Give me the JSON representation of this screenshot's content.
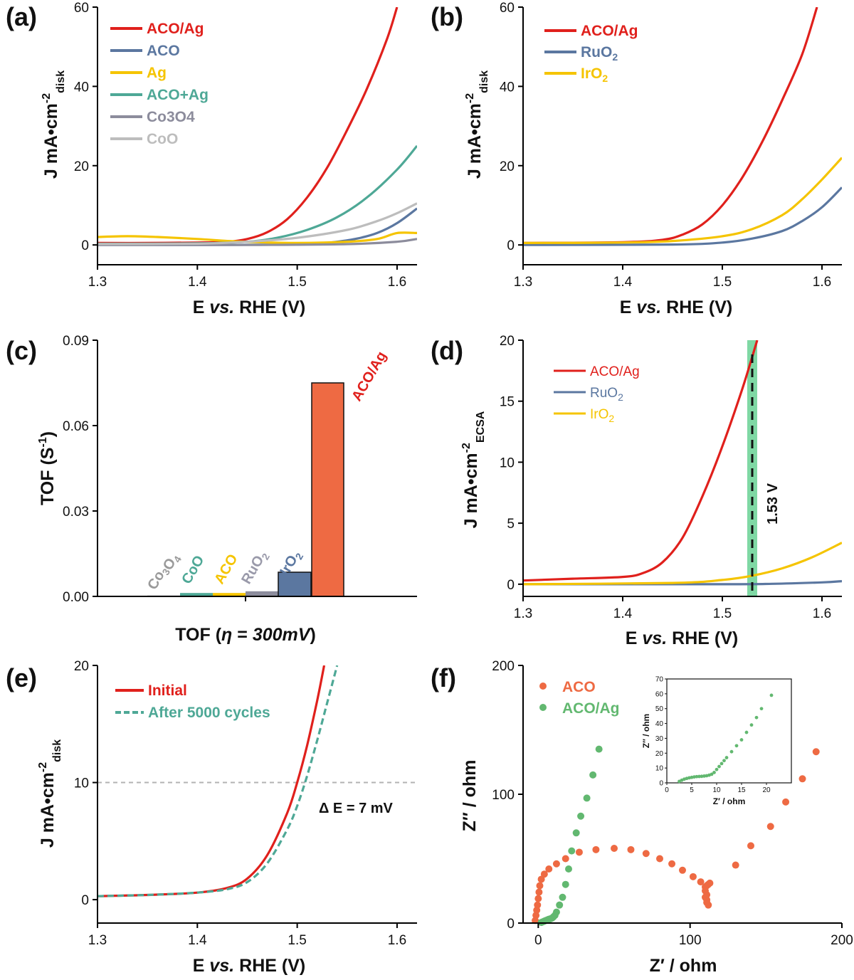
{
  "panels": {
    "a": {
      "label": "(a)"
    },
    "b": {
      "label": "(b)"
    },
    "c": {
      "label": "(c)"
    },
    "d": {
      "label": "(d)"
    },
    "e": {
      "label": "(e)"
    },
    "f": {
      "label": "(f)"
    }
  },
  "colors": {
    "red": "#e0201c",
    "slate": "#5b77a0",
    "yellow": "#f5c400",
    "teal": "#4ea896",
    "gray": "#8c8c9c",
    "lightgray": "#bdbdbd",
    "orange": "#ee6a43",
    "green": "#62b870",
    "band": "#7fd8a4"
  },
  "chart_data": [
    {
      "id": "a",
      "type": "line",
      "xlabel": "E vs. RHE (V)",
      "ylabel": "J mA•cm⁻² disk",
      "xlim": [
        1.3,
        1.62
      ],
      "ylim": [
        -5,
        60
      ],
      "xticks": [
        1.3,
        1.4,
        1.5,
        1.6
      ],
      "yticks": [
        0,
        20,
        40,
        60
      ],
      "legend_position": "top-left",
      "series": [
        {
          "name": "ACO/Ag",
          "color": "#e0201c",
          "x": [
            1.3,
            1.35,
            1.4,
            1.43,
            1.45,
            1.47,
            1.49,
            1.51,
            1.53,
            1.55,
            1.57,
            1.59,
            1.6
          ],
          "y": [
            0.5,
            0.5,
            0.6,
            0.8,
            1.5,
            3.2,
            6.5,
            12,
            19.5,
            29,
            39.5,
            52,
            60
          ]
        },
        {
          "name": "ACO",
          "color": "#5b77a0",
          "x": [
            1.3,
            1.4,
            1.5,
            1.52,
            1.54,
            1.56,
            1.58,
            1.6,
            1.62
          ],
          "y": [
            0,
            0,
            0.1,
            0.3,
            0.8,
            1.6,
            3,
            5.5,
            9.2
          ]
        },
        {
          "name": "Ag",
          "color": "#f5c400",
          "x": [
            1.3,
            1.33,
            1.36,
            1.4,
            1.43,
            1.46,
            1.5,
            1.55,
            1.58,
            1.6,
            1.62
          ],
          "y": [
            2,
            2.2,
            2,
            1.5,
            1,
            0.7,
            0.5,
            0.8,
            1.5,
            3,
            3
          ]
        },
        {
          "name": "ACO+Ag",
          "color": "#4ea896",
          "x": [
            1.3,
            1.4,
            1.45,
            1.48,
            1.51,
            1.54,
            1.57,
            1.6,
            1.62
          ],
          "y": [
            0.3,
            0.4,
            0.8,
            1.8,
            3.8,
            7,
            12,
            19,
            25
          ]
        },
        {
          "name": "Co3O4",
          "color": "#8c8c9c",
          "x": [
            1.3,
            1.45,
            1.55,
            1.6,
            1.62
          ],
          "y": [
            0,
            0,
            0.2,
            0.8,
            1.5
          ]
        },
        {
          "name": "CoO",
          "color": "#bdbdbd",
          "x": [
            1.3,
            1.4,
            1.45,
            1.5,
            1.55,
            1.58,
            1.6,
            1.62
          ],
          "y": [
            0.2,
            0.3,
            0.8,
            1.8,
            3.8,
            6,
            8,
            10.5
          ]
        }
      ]
    },
    {
      "id": "b",
      "type": "line",
      "xlabel": "E vs. RHE (V)",
      "ylabel": "J mA•cm⁻² disk",
      "xlim": [
        1.3,
        1.62
      ],
      "ylim": [
        -5,
        60
      ],
      "xticks": [
        1.3,
        1.4,
        1.5,
        1.6
      ],
      "yticks": [
        0,
        20,
        40,
        60
      ],
      "legend_position": "top-left",
      "series": [
        {
          "name": "ACO/Ag",
          "color": "#e0201c",
          "x": [
            1.3,
            1.4,
            1.44,
            1.46,
            1.48,
            1.5,
            1.52,
            1.54,
            1.56,
            1.58,
            1.595
          ],
          "y": [
            0.5,
            0.7,
            1.3,
            2.6,
            5.2,
            10,
            17,
            26,
            36.5,
            48,
            60
          ]
        },
        {
          "name": "RuO2",
          "color": "#5b77a0",
          "x": [
            1.3,
            1.45,
            1.5,
            1.53,
            1.56,
            1.58,
            1.6,
            1.62
          ],
          "y": [
            0,
            0.1,
            0.6,
            1.6,
            3.5,
            6,
            9.5,
            14.5
          ]
        },
        {
          "name": "IrO2",
          "color": "#f5c400",
          "x": [
            1.3,
            1.4,
            1.45,
            1.5,
            1.53,
            1.56,
            1.58,
            1.6,
            1.62
          ],
          "y": [
            0.5,
            0.6,
            1,
            2.2,
            4,
            7.5,
            11.5,
            16.5,
            22
          ]
        }
      ]
    },
    {
      "id": "c",
      "type": "bar",
      "xlabel": "TOF (η = 300mV)",
      "ylabel": "TOF (S⁻¹)",
      "ylim": [
        0,
        0.09
      ],
      "yticks": [
        0.0,
        0.03,
        0.06,
        0.09
      ],
      "categories": [
        "Co3O4",
        "CoO",
        "ACO",
        "RuO2",
        "IrO2",
        "ACO/Ag"
      ],
      "values": [
        0.0003,
        0.0012,
        0.0012,
        0.0018,
        0.0085,
        0.075
      ],
      "colors": [
        "#8c8c9c",
        "#4ea896",
        "#f5c400",
        "#8c8c9c",
        "#5b77a0",
        "#ee6a43"
      ]
    },
    {
      "id": "d",
      "type": "line",
      "xlabel": "E vs. RHE (V)",
      "ylabel": "J mA•cm⁻² ECSA",
      "xlim": [
        1.3,
        1.62
      ],
      "ylim": [
        -1,
        20
      ],
      "xticks": [
        1.3,
        1.4,
        1.5,
        1.6
      ],
      "yticks": [
        0,
        5,
        10,
        15,
        20
      ],
      "legend_position": "top-left",
      "annotation": "1.53 V",
      "marker_x": 1.53,
      "band": [
        1.525,
        1.535
      ],
      "series": [
        {
          "name": "ACO/Ag",
          "color": "#e0201c",
          "x": [
            1.3,
            1.35,
            1.4,
            1.42,
            1.44,
            1.46,
            1.48,
            1.5,
            1.52,
            1.535
          ],
          "y": [
            0.3,
            0.45,
            0.6,
            0.9,
            1.8,
            3.8,
            7.2,
            11.3,
            16,
            20
          ]
        },
        {
          "name": "RuO2",
          "color": "#5b77a0",
          "x": [
            1.3,
            1.5,
            1.55,
            1.6,
            1.62
          ],
          "y": [
            0,
            0,
            0.03,
            0.15,
            0.25
          ]
        },
        {
          "name": "IrO2",
          "color": "#f5c400",
          "x": [
            1.3,
            1.45,
            1.5,
            1.53,
            1.56,
            1.59,
            1.62
          ],
          "y": [
            0,
            0.1,
            0.35,
            0.7,
            1.3,
            2.2,
            3.4
          ]
        }
      ]
    },
    {
      "id": "e",
      "type": "line",
      "xlabel": "E vs. RHE (V)",
      "ylabel": "J mA•cm⁻² disk",
      "xlim": [
        1.3,
        1.62
      ],
      "ylim": [
        -2,
        20
      ],
      "xticks": [
        1.3,
        1.4,
        1.5,
        1.6
      ],
      "yticks": [
        0,
        10,
        20
      ],
      "legend_position": "top-left",
      "annotation": "Δ E = 7 mV",
      "hline": 10,
      "series": [
        {
          "name": "Initial",
          "color": "#e0201c",
          "style": "solid",
          "x": [
            1.3,
            1.35,
            1.4,
            1.43,
            1.45,
            1.47,
            1.49,
            1.5,
            1.51,
            1.52,
            1.527
          ],
          "y": [
            0.3,
            0.4,
            0.6,
            1,
            1.8,
            3.8,
            7.4,
            10,
            13.2,
            17,
            20
          ]
        },
        {
          "name": "After 5000 cycles",
          "color": "#4ea896",
          "style": "dashed",
          "x": [
            1.3,
            1.35,
            1.4,
            1.43,
            1.45,
            1.47,
            1.49,
            1.5,
            1.51,
            1.52,
            1.53,
            1.54
          ],
          "y": [
            0.3,
            0.4,
            0.6,
            0.9,
            1.5,
            3.1,
            6,
            8,
            10.6,
            13.6,
            16.8,
            20
          ]
        }
      ]
    },
    {
      "id": "f",
      "type": "scatter",
      "xlabel": "Z′ / ohm",
      "ylabel": "Z″ / ohm",
      "xlim": [
        -10,
        200
      ],
      "ylim": [
        0,
        200
      ],
      "xticks": [
        0,
        100,
        200
      ],
      "yticks": [
        0,
        100,
        200
      ],
      "legend_position": "top-left",
      "series": [
        {
          "name": "ACO",
          "color": "#ee6a43",
          "x": [
            -2,
            -1.5,
            -1,
            -0.5,
            0,
            0.5,
            1,
            2,
            4,
            7,
            12,
            18,
            27,
            38,
            50,
            61,
            71,
            80,
            88,
            95,
            102,
            107,
            110,
            111,
            111,
            112,
            111,
            110,
            110,
            111,
            112,
            113,
            130,
            140,
            153,
            163,
            174,
            183
          ],
          "y": [
            2,
            6,
            10,
            14,
            19,
            24,
            29,
            34,
            38,
            42,
            46,
            50,
            55,
            57,
            58,
            57,
            54,
            50,
            46,
            41,
            36,
            32,
            28,
            22,
            18,
            14,
            16,
            20,
            25,
            29,
            30,
            31,
            45,
            60,
            75,
            94,
            112,
            133
          ]
        },
        {
          "name": "ACO/Ag",
          "color": "#62b870",
          "x": [
            2,
            3,
            4,
            5,
            6,
            7,
            8,
            9,
            10,
            11,
            12,
            14,
            16,
            18,
            20,
            22,
            25,
            28,
            32,
            36,
            40
          ],
          "y": [
            0.5,
            1,
            1.5,
            2,
            2.5,
            3,
            3.3,
            3.8,
            4.8,
            6,
            8.5,
            14,
            20,
            30,
            42,
            56,
            70,
            83,
            97,
            115,
            135
          ]
        }
      ],
      "inset": {
        "xlabel": "Z′ / ohm",
        "ylabel": "Z″ / ohm",
        "xlim": [
          0,
          25
        ],
        "ylim": [
          0,
          70
        ],
        "xticks": [
          0,
          5,
          10,
          15,
          20
        ],
        "yticks": [
          0,
          10,
          20,
          30,
          40,
          50,
          60,
          70
        ],
        "x": [
          2.5,
          3,
          3.5,
          4,
          4.5,
          5,
          5.5,
          6,
          6.5,
          7,
          7.5,
          8,
          8.5,
          9,
          9.5,
          10,
          10.5,
          11,
          11.5,
          12,
          13,
          14,
          15,
          16,
          17,
          18,
          19,
          21
        ],
        "y": [
          1,
          1.8,
          2.5,
          3,
          3.4,
          3.7,
          4,
          4.2,
          4.3,
          4.4,
          4.6,
          4.8,
          5.2,
          5.8,
          7,
          9,
          11,
          13,
          15,
          17,
          21,
          25,
          29,
          34,
          39,
          44,
          50,
          59
        ]
      }
    }
  ],
  "labels": {
    "a": {
      "xlabel_pre": "E ",
      "xlabel_it": "vs.",
      "xlabel_post": " RHE (V)",
      "ylabel_main": "J mA•cm",
      "ylabel_sup": "-2",
      "ylabel_sub": "disk"
    },
    "b": {
      "xlabel_pre": "E ",
      "xlabel_it": "vs.",
      "xlabel_post": " RHE (V)",
      "ylabel_main": "J mA•cm",
      "ylabel_sup": "-2",
      "ylabel_sub": "disk"
    },
    "c": {
      "xlabel_pre": "TOF (",
      "xlabel_eta": "η",
      "xlabel_eq": " = ",
      "xlabel_val": "300mV",
      "xlabel_post": ")",
      "ylabel_main": "TOF (S",
      "ylabel_sup": "-1",
      "ylabel_post": ")"
    },
    "d": {
      "xlabel_pre": "E ",
      "xlabel_it": "vs.",
      "xlabel_post": " RHE (V)",
      "ylabel_main": "J mA•cm",
      "ylabel_sup": "-2",
      "ylabel_sub": "ECSA"
    },
    "e": {
      "xlabel_pre": "E ",
      "xlabel_it": "vs.",
      "xlabel_post": " RHE (V)",
      "ylabel_main": "J mA•cm",
      "ylabel_sup": "-2",
      "ylabel_sub": "disk"
    },
    "f": {
      "xlabel": "Z′ / ohm",
      "ylabel": "Z″ / ohm"
    }
  }
}
